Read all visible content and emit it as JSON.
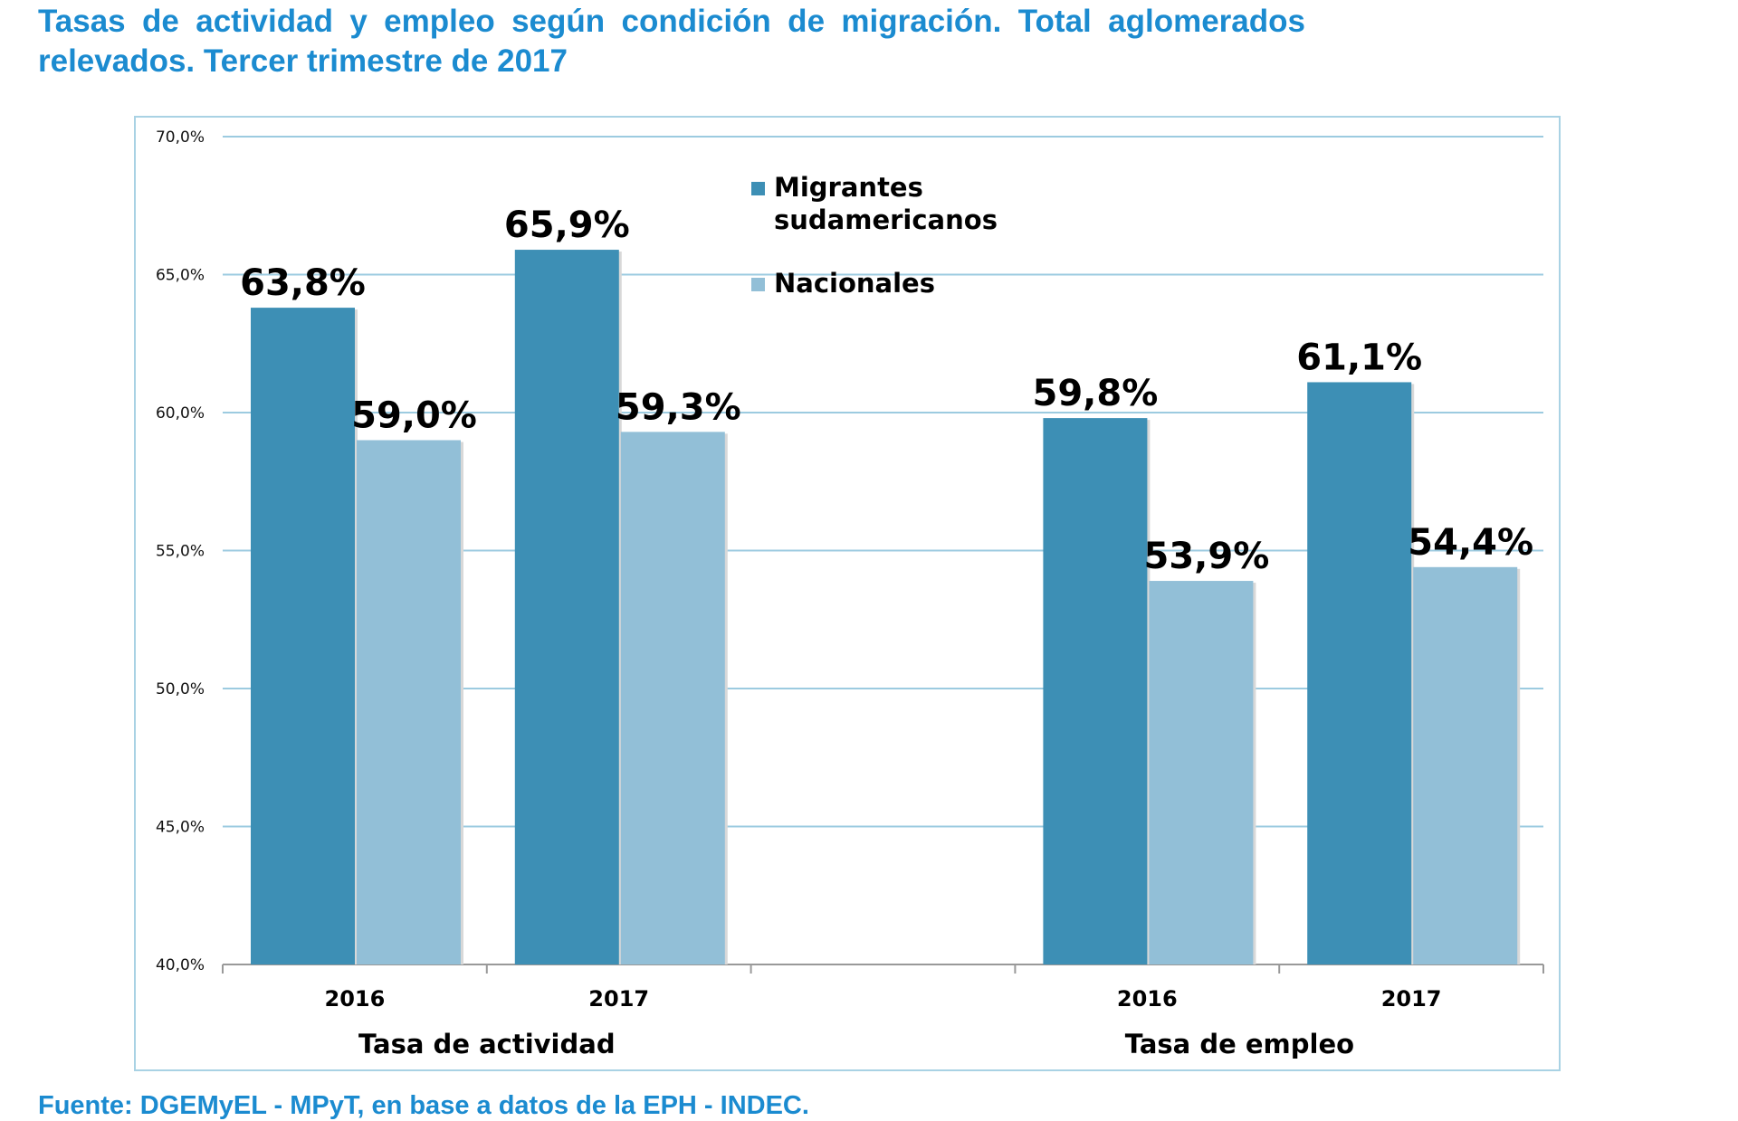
{
  "title": "Tasas de actividad y empleo según condición de migración. Total aglomerados relevados. Tercer trimestre de 2017",
  "source": "Fuente: DGEMyEL - MPyT, en base a datos de la EPH - INDEC.",
  "chart_data": {
    "type": "bar",
    "title": "Tasas de actividad y empleo según condición de migración. Total aglomerados relevados. Tercer trimestre de 2017",
    "categories": [
      "2016",
      "2017",
      "",
      "2016",
      "2017"
    ],
    "groups": [
      {
        "label": "Tasa de actividad",
        "categories": [
          "2016",
          "2017"
        ]
      },
      {
        "label": "Tasa de empleo",
        "categories": [
          "2016",
          "2017"
        ]
      }
    ],
    "series": [
      {
        "name": "Migrantes sudamericanos",
        "color": "#3d8fb5",
        "values": [
          63.8,
          65.9,
          null,
          59.8,
          61.1
        ],
        "labels": [
          "63,8%",
          "65,9%",
          "",
          "59,8%",
          "61,1%"
        ]
      },
      {
        "name": "Nacionales",
        "color": "#92bfd7",
        "values": [
          59.0,
          59.3,
          null,
          53.9,
          54.4
        ],
        "labels": [
          "59,0%",
          "59,3%",
          "",
          "53,9%",
          "54,4%"
        ]
      }
    ],
    "ylim": [
      40,
      70
    ],
    "yticks": [
      "40,0%",
      "45,0%",
      "50,0%",
      "55,0%",
      "60,0%",
      "65,0%",
      "70,0%"
    ],
    "grid": true,
    "legend": "top-center",
    "xlabel": "",
    "ylabel": ""
  }
}
